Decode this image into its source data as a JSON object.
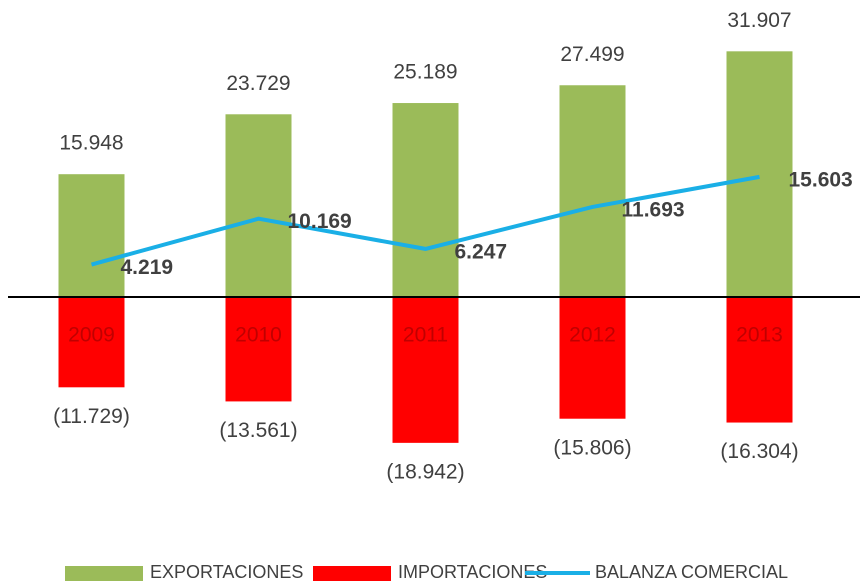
{
  "chart_data": {
    "type": "bar",
    "categories": [
      "2009",
      "2010",
      "2011",
      "2012",
      "2013"
    ],
    "series": [
      {
        "name": "EXPORTACIONES",
        "type": "bar",
        "color": "#9bbb59",
        "values": [
          15948,
          23729,
          25189,
          27499,
          31907
        ],
        "value_labels": [
          "15.948",
          "23.729",
          "25.189",
          "27.499",
          "31.907"
        ]
      },
      {
        "name": "IMPORTACIONES",
        "type": "bar",
        "color": "#ff0000",
        "values": [
          -11729,
          -13561,
          -18942,
          -15806,
          -16304
        ],
        "value_labels": [
          "(11.729)",
          "(13.561)",
          "(18.942)",
          "(15.806)",
          "(16.304)"
        ]
      },
      {
        "name": "BALANZA COMERCIAL",
        "type": "line",
        "color": "#1aafe6",
        "values": [
          4219,
          10169,
          6247,
          11693,
          15603
        ],
        "value_labels": [
          "4.219",
          "10.169",
          "6.247",
          "11.693",
          "15.603"
        ]
      }
    ],
    "ylim": [
      -30000,
      35000
    ]
  }
}
